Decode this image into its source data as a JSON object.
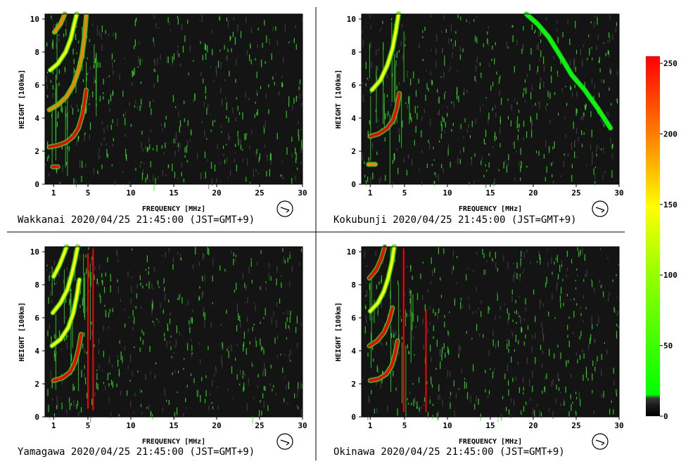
{
  "chart_data": [
    {
      "type": "heatmap",
      "station": "Wakkanai",
      "caption": "Wakkanai 2020/04/25 21:45:00 (JST=GMT+9)",
      "xlabel": "FREQUENCY [MHz]",
      "ylabel": "HEIGHT [100km]",
      "xlim": [
        0,
        30
      ],
      "ylim": [
        0,
        10.3
      ],
      "xticks": [
        1,
        5,
        10,
        15,
        20,
        25,
        30
      ],
      "yticks": [
        0,
        2,
        4,
        6,
        8,
        10
      ],
      "traces": [
        {
          "points": [
            [
              0.5,
              2.25
            ],
            [
              1.5,
              2.35
            ],
            [
              2.5,
              2.55
            ],
            [
              3.3,
              2.9
            ],
            [
              3.9,
              3.4
            ],
            [
              4.3,
              4.1
            ],
            [
              4.6,
              4.9
            ],
            [
              4.8,
              5.7
            ]
          ],
          "intensity": 240
        },
        {
          "points": [
            [
              0.5,
              4.5
            ],
            [
              1.5,
              4.8
            ],
            [
              2.5,
              5.3
            ],
            [
              3.3,
              6.0
            ],
            [
              3.9,
              6.9
            ],
            [
              4.3,
              7.8
            ],
            [
              4.6,
              8.9
            ],
            [
              4.8,
              10.2
            ]
          ],
          "intensity": 200
        },
        {
          "points": [
            [
              0.6,
              6.9
            ],
            [
              1.5,
              7.3
            ],
            [
              2.4,
              8.0
            ],
            [
              3.0,
              8.8
            ],
            [
              3.4,
              9.7
            ],
            [
              3.7,
              10.3
            ]
          ],
          "intensity": 170
        },
        {
          "points": [
            [
              1.1,
              9.2
            ],
            [
              1.8,
              9.7
            ],
            [
              2.3,
              10.3
            ]
          ],
          "intensity": 200
        },
        {
          "points": [
            [
              0.9,
              1.05
            ],
            [
              1.5,
              1.05
            ]
          ],
          "intensity": 240
        }
      ],
      "lines": []
    },
    {
      "type": "heatmap",
      "station": "Kokubunji",
      "caption": "Kokubunji 2020/04/25 21:45:00 (JST=GMT+9)",
      "xlabel": "FREQUENCY [MHz]",
      "ylabel": "HEIGHT [100km]",
      "xlim": [
        0,
        30
      ],
      "ylim": [
        0,
        10.3
      ],
      "xticks": [
        1,
        5,
        10,
        15,
        20,
        25,
        30
      ],
      "yticks": [
        0,
        2,
        4,
        6,
        8,
        10
      ],
      "traces": [
        {
          "points": [
            [
              1.0,
              2.9
            ],
            [
              2.0,
              3.05
            ],
            [
              3.0,
              3.4
            ],
            [
              3.7,
              3.9
            ],
            [
              4.1,
              4.6
            ],
            [
              4.4,
              5.5
            ]
          ],
          "intensity": 240
        },
        {
          "points": [
            [
              1.2,
              5.7
            ],
            [
              2.2,
              6.3
            ],
            [
              3.0,
              7.2
            ],
            [
              3.6,
              8.2
            ],
            [
              4.0,
              9.3
            ],
            [
              4.3,
              10.3
            ]
          ],
          "intensity": 170
        },
        {
          "points": [
            [
              0.8,
              1.2
            ],
            [
              1.6,
              1.2
            ]
          ],
          "intensity": 200
        },
        {
          "points": [
            [
              19.2,
              10.3
            ],
            [
              20.5,
              9.7
            ],
            [
              21.8,
              8.9
            ],
            [
              23.0,
              7.9
            ],
            [
              24.5,
              6.6
            ],
            [
              26.0,
              5.7
            ],
            [
              27.5,
              4.6
            ],
            [
              29.0,
              3.4
            ]
          ],
          "intensity": 100
        }
      ],
      "lines": []
    },
    {
      "type": "heatmap",
      "station": "Yamagawa",
      "caption": "Yamagawa 2020/04/25 21:45:00 (JST=GMT+9)",
      "xlabel": "FREQUENCY [MHz]",
      "ylabel": "HEIGHT [100km]",
      "xlim": [
        0,
        30
      ],
      "ylim": [
        0,
        10.3
      ],
      "xticks": [
        1,
        5,
        10,
        15,
        20,
        25,
        30
      ],
      "yticks": [
        0,
        2,
        4,
        6,
        8,
        10
      ],
      "traces": [
        {
          "points": [
            [
              1.0,
              2.2
            ],
            [
              2.0,
              2.35
            ],
            [
              2.9,
              2.7
            ],
            [
              3.5,
              3.3
            ],
            [
              3.9,
              4.1
            ],
            [
              4.2,
              5.0
            ]
          ],
          "intensity": 240
        },
        {
          "points": [
            [
              0.8,
              4.3
            ],
            [
              1.8,
              4.7
            ],
            [
              2.7,
              5.4
            ],
            [
              3.3,
              6.3
            ],
            [
              3.7,
              7.3
            ],
            [
              4.0,
              8.3
            ]
          ],
          "intensity": 150
        },
        {
          "points": [
            [
              0.9,
              6.3
            ],
            [
              1.8,
              6.9
            ],
            [
              2.6,
              7.7
            ],
            [
              3.1,
              8.6
            ],
            [
              3.5,
              9.5
            ],
            [
              3.8,
              10.3
            ]
          ],
          "intensity": 150
        },
        {
          "points": [
            [
              1.0,
              8.5
            ],
            [
              1.7,
              9.2
            ],
            [
              2.3,
              10.0
            ],
            [
              2.5,
              10.3
            ]
          ],
          "intensity": 150
        }
      ],
      "lines": [
        {
          "x": 5.0,
          "y0": 0.5,
          "y1": 9.9,
          "intensity": 240
        },
        {
          "x": 5.6,
          "y0": 0.4,
          "y1": 10.2,
          "intensity": 240
        }
      ]
    },
    {
      "type": "heatmap",
      "station": "Okinawa",
      "caption": "Okinawa 2020/04/25 21:45:00 (JST=GMT+9)",
      "xlabel": "FREQUENCY [MHz]",
      "ylabel": "HEIGHT [100km]",
      "xlim": [
        0,
        30
      ],
      "ylim": [
        0,
        10.3
      ],
      "xticks": [
        1,
        5,
        10,
        15,
        20,
        25,
        30
      ],
      "yticks": [
        0,
        2,
        4,
        6,
        8,
        10
      ],
      "traces": [
        {
          "points": [
            [
              1.0,
              2.2
            ],
            [
              2.0,
              2.3
            ],
            [
              2.9,
              2.6
            ],
            [
              3.5,
              3.1
            ],
            [
              3.9,
              3.8
            ],
            [
              4.2,
              4.6
            ]
          ],
          "intensity": 240
        },
        {
          "points": [
            [
              0.9,
              4.3
            ],
            [
              1.8,
              4.6
            ],
            [
              2.6,
              5.1
            ],
            [
              3.2,
              5.8
            ],
            [
              3.6,
              6.6
            ]
          ],
          "intensity": 240
        },
        {
          "points": [
            [
              1.0,
              6.4
            ],
            [
              1.9,
              6.9
            ],
            [
              2.6,
              7.6
            ],
            [
              3.1,
              8.4
            ],
            [
              3.5,
              9.3
            ],
            [
              3.8,
              10.3
            ]
          ],
          "intensity": 150
        },
        {
          "points": [
            [
              0.9,
              8.4
            ],
            [
              1.7,
              8.9
            ],
            [
              2.3,
              9.6
            ],
            [
              2.7,
              10.3
            ]
          ],
          "intensity": 240
        }
      ],
      "lines": [
        {
          "x": 4.9,
          "y0": 0.3,
          "y1": 10.2,
          "intensity": 240
        },
        {
          "x": 7.5,
          "y0": 0.3,
          "y1": 6.5,
          "intensity": 240
        }
      ]
    }
  ],
  "colorbar": {
    "ticks": [
      0,
      50,
      100,
      150,
      200,
      250
    ],
    "range": [
      0,
      255
    ],
    "colors": [
      "#000000",
      "#303030",
      "#00ff00",
      "#ffff00",
      "#ff8000",
      "#ff0000"
    ]
  },
  "colors": {
    "plot_background": "#141414",
    "noise_green": "#33ff22",
    "noise_gray": "#555555"
  }
}
